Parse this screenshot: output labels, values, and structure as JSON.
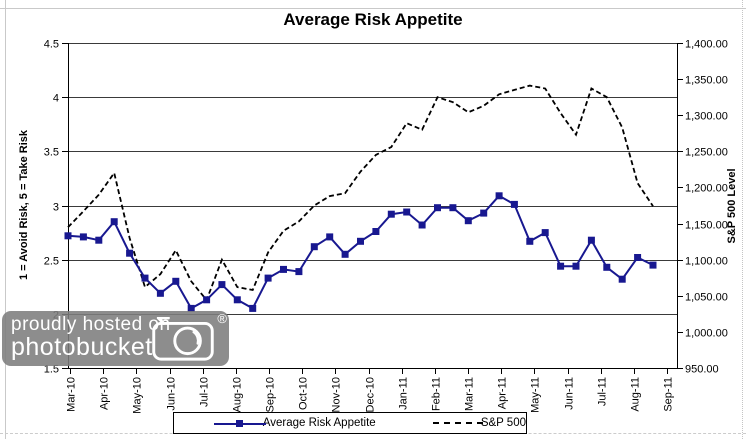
{
  "chart_data": {
    "type": "line",
    "title": "Average Risk Appetite",
    "x_axis": {
      "tick_labels": [
        "Mar-10",
        "Apr-10",
        "May-10",
        "Jun-10",
        "Jul-10",
        "Aug-10",
        "Sep-10",
        "Oct-10",
        "Nov-10",
        "Dec-10",
        "Jan-11",
        "Feb-11",
        "Mar-11",
        "Apr-11",
        "May-11",
        "Jun-11",
        "Jul-11",
        "Aug-11",
        "Sep-11"
      ]
    },
    "left_axis": {
      "title": "1 = Avoid Risk, 5 = Take Risk",
      "min": 1.5,
      "max": 4.5,
      "step": 0.5,
      "tick_labels": [
        "4.5",
        "4",
        "3.5",
        "3",
        "2.5",
        "2",
        "1.5"
      ]
    },
    "right_axis": {
      "title": "S&P 500 Level",
      "min": 950,
      "max": 1400,
      "step": 50,
      "tick_labels": [
        "1,400.00",
        "1,350.00",
        "1,300.00",
        "1,250.00",
        "1,200.00",
        "1,150.00",
        "1,100.00",
        "1,050.00",
        "1,000.00",
        "950.00"
      ]
    },
    "series": [
      {
        "name": "Average Risk Appetite",
        "axis": "left",
        "style": "solid",
        "marker": "square",
        "color": "#181890",
        "values": [
          2.72,
          2.71,
          2.68,
          2.85,
          2.56,
          2.33,
          2.19,
          2.3,
          2.05,
          2.13,
          2.27,
          2.13,
          2.05,
          2.33,
          2.41,
          2.39,
          2.62,
          2.71,
          2.55,
          2.67,
          2.76,
          2.92,
          2.94,
          2.82,
          2.98,
          2.98,
          2.86,
          2.93,
          3.09,
          3.01,
          2.67,
          2.75,
          2.44,
          2.44,
          2.68,
          2.43,
          2.32,
          2.52,
          2.45
        ]
      },
      {
        "name": "S&P 500",
        "axis": "right",
        "style": "dashed",
        "marker": "none",
        "color": "#000000",
        "values": [
          1145,
          1167,
          1190,
          1220,
          1130,
          1062,
          1080,
          1113,
          1070,
          1044,
          1100,
          1062,
          1058,
          1110,
          1140,
          1153,
          1175,
          1188,
          1192,
          1222,
          1245,
          1256,
          1289,
          1280,
          1325,
          1318,
          1304,
          1313,
          1329,
          1335,
          1341,
          1337,
          1303,
          1273,
          1337,
          1325,
          1283,
          1206,
          1174
        ]
      }
    ],
    "legend": {
      "position": "bottom",
      "entries": [
        "Average Risk Appetite",
        "S&P 500"
      ]
    },
    "grid": "horizontal",
    "ylim_left": [
      1.5,
      4.5
    ],
    "ylim_right": [
      950,
      1400
    ]
  },
  "watermark": {
    "line1": "proudly hosted on",
    "line2": "photobucket",
    "registered_mark": "®"
  }
}
